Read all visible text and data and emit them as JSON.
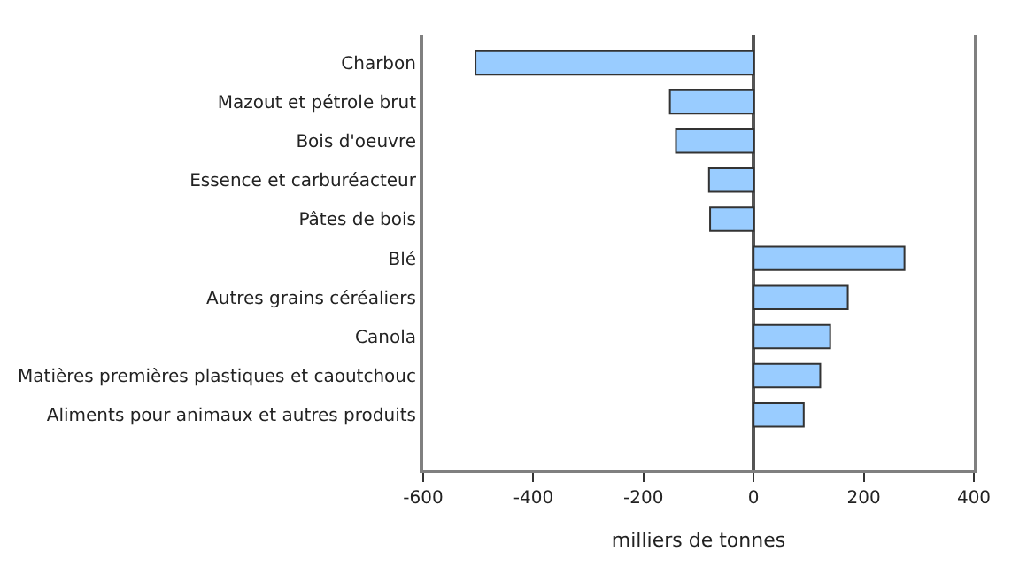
{
  "chart_data": {
    "type": "bar",
    "orientation": "horizontal",
    "xlabel": "milliers de tonnes",
    "categories": [
      "Charbon",
      "Mazout et pétrole brut",
      "Bois d'oeuvre",
      "Essence et carburéacteur",
      "Pâtes de bois",
      "Blé",
      "Autres grains céréaliers",
      "Canola",
      "Matières premières plastiques et caoutchouc",
      "Aliments pour animaux et autres produits"
    ],
    "values": [
      -505,
      -152,
      -141,
      -81,
      -79,
      274,
      171,
      139,
      121,
      91
    ],
    "color": "#99ccff",
    "xlim": [
      -600,
      400
    ],
    "xticks": [
      -600,
      -400,
      -200,
      0,
      200,
      400
    ],
    "legend": false
  }
}
